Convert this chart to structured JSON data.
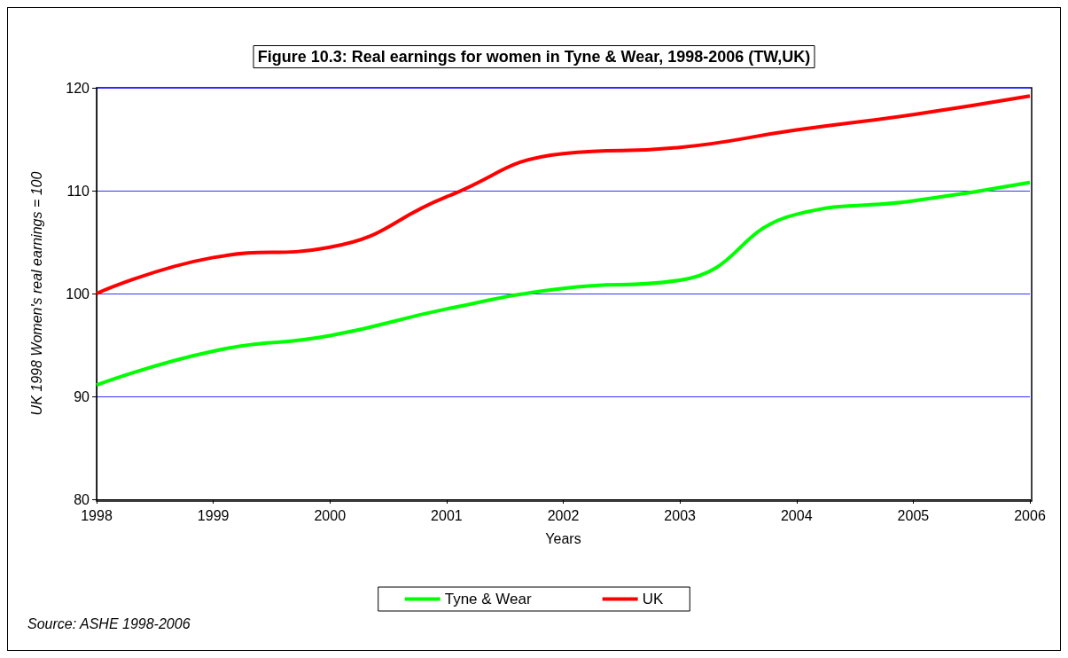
{
  "chart_data": {
    "type": "line",
    "title": "Figure 10.3: Real earnings for women in Tyne & Wear, 1998-2006 (TW,UK)",
    "xlabel": "Years",
    "ylabel": "UK 1998 Women's real earnings = 100",
    "x": [
      1998,
      1999,
      2000,
      2001,
      2002,
      2003,
      2004,
      2005,
      2006
    ],
    "series": [
      {
        "name": "Tyne & Wear",
        "color": "#00ff00",
        "values": [
          91.1,
          94.4,
          95.9,
          98.5,
          100.5,
          101.3,
          107.7,
          109.0,
          110.8
        ]
      },
      {
        "name": "UK",
        "color": "#ff0000",
        "values": [
          100,
          103.5,
          104.5,
          109.4,
          113.6,
          114.2,
          115.9,
          117.4,
          119.2
        ]
      }
    ],
    "xlim": [
      1998,
      2006
    ],
    "xticks": [
      1998,
      1999,
      2000,
      2001,
      2002,
      2003,
      2004,
      2005,
      2006
    ],
    "ylim": [
      80,
      120
    ],
    "yticks": [
      80,
      90,
      100,
      110,
      120
    ],
    "grid": "y",
    "legend": "bottom",
    "marker": "none",
    "line_style": "solid",
    "annotations": [
      "Source: ASHE 1998-2006"
    ]
  }
}
